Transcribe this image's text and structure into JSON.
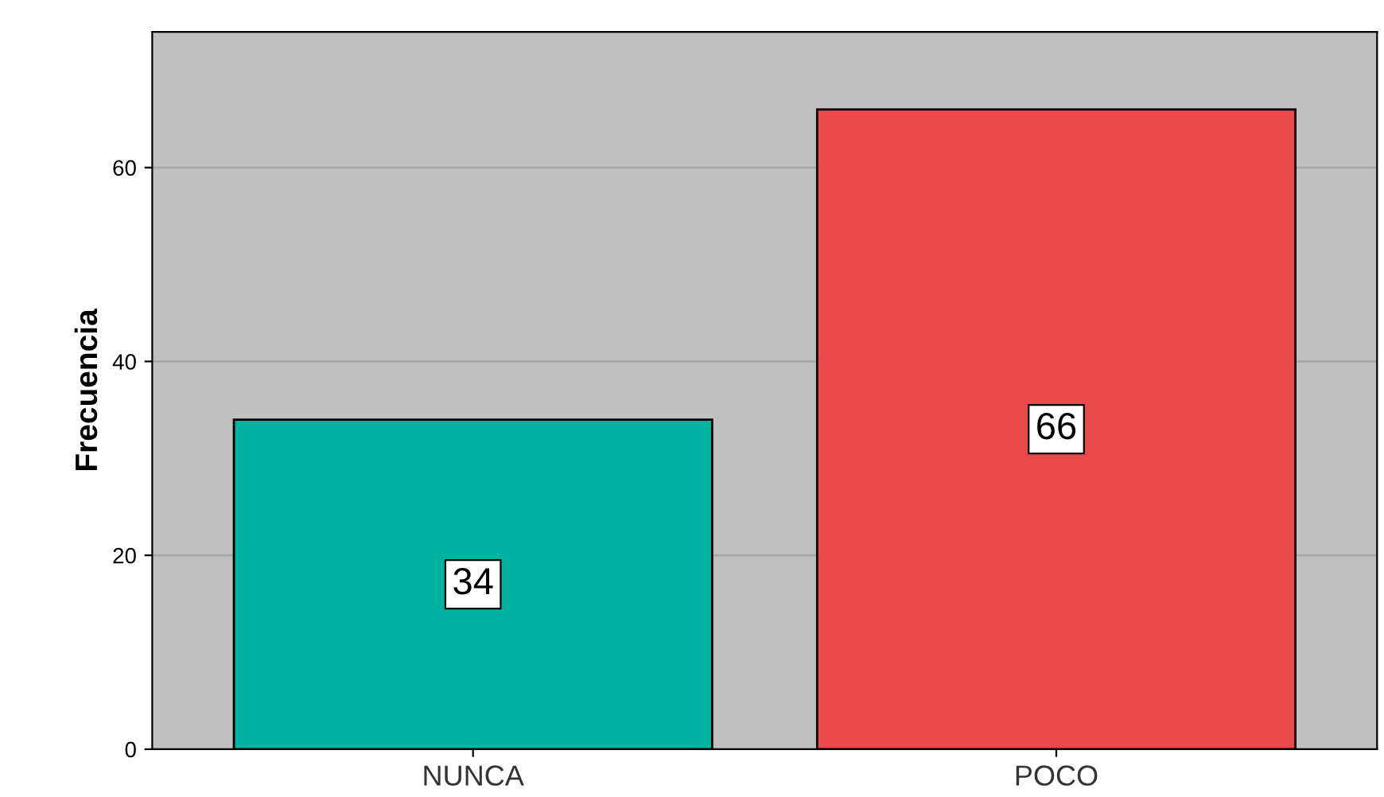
{
  "chart_data": {
    "type": "bar",
    "ylabel": "Frecuencia",
    "categories": [
      "NUNCA",
      "POCO"
    ],
    "values": [
      34,
      66
    ],
    "colors": [
      "#00b3a0",
      "#ea4a4c"
    ],
    "ylim": [
      0,
      74
    ],
    "yticks": [
      0,
      20,
      40,
      60
    ],
    "grid": "y",
    "data_labels": true
  }
}
